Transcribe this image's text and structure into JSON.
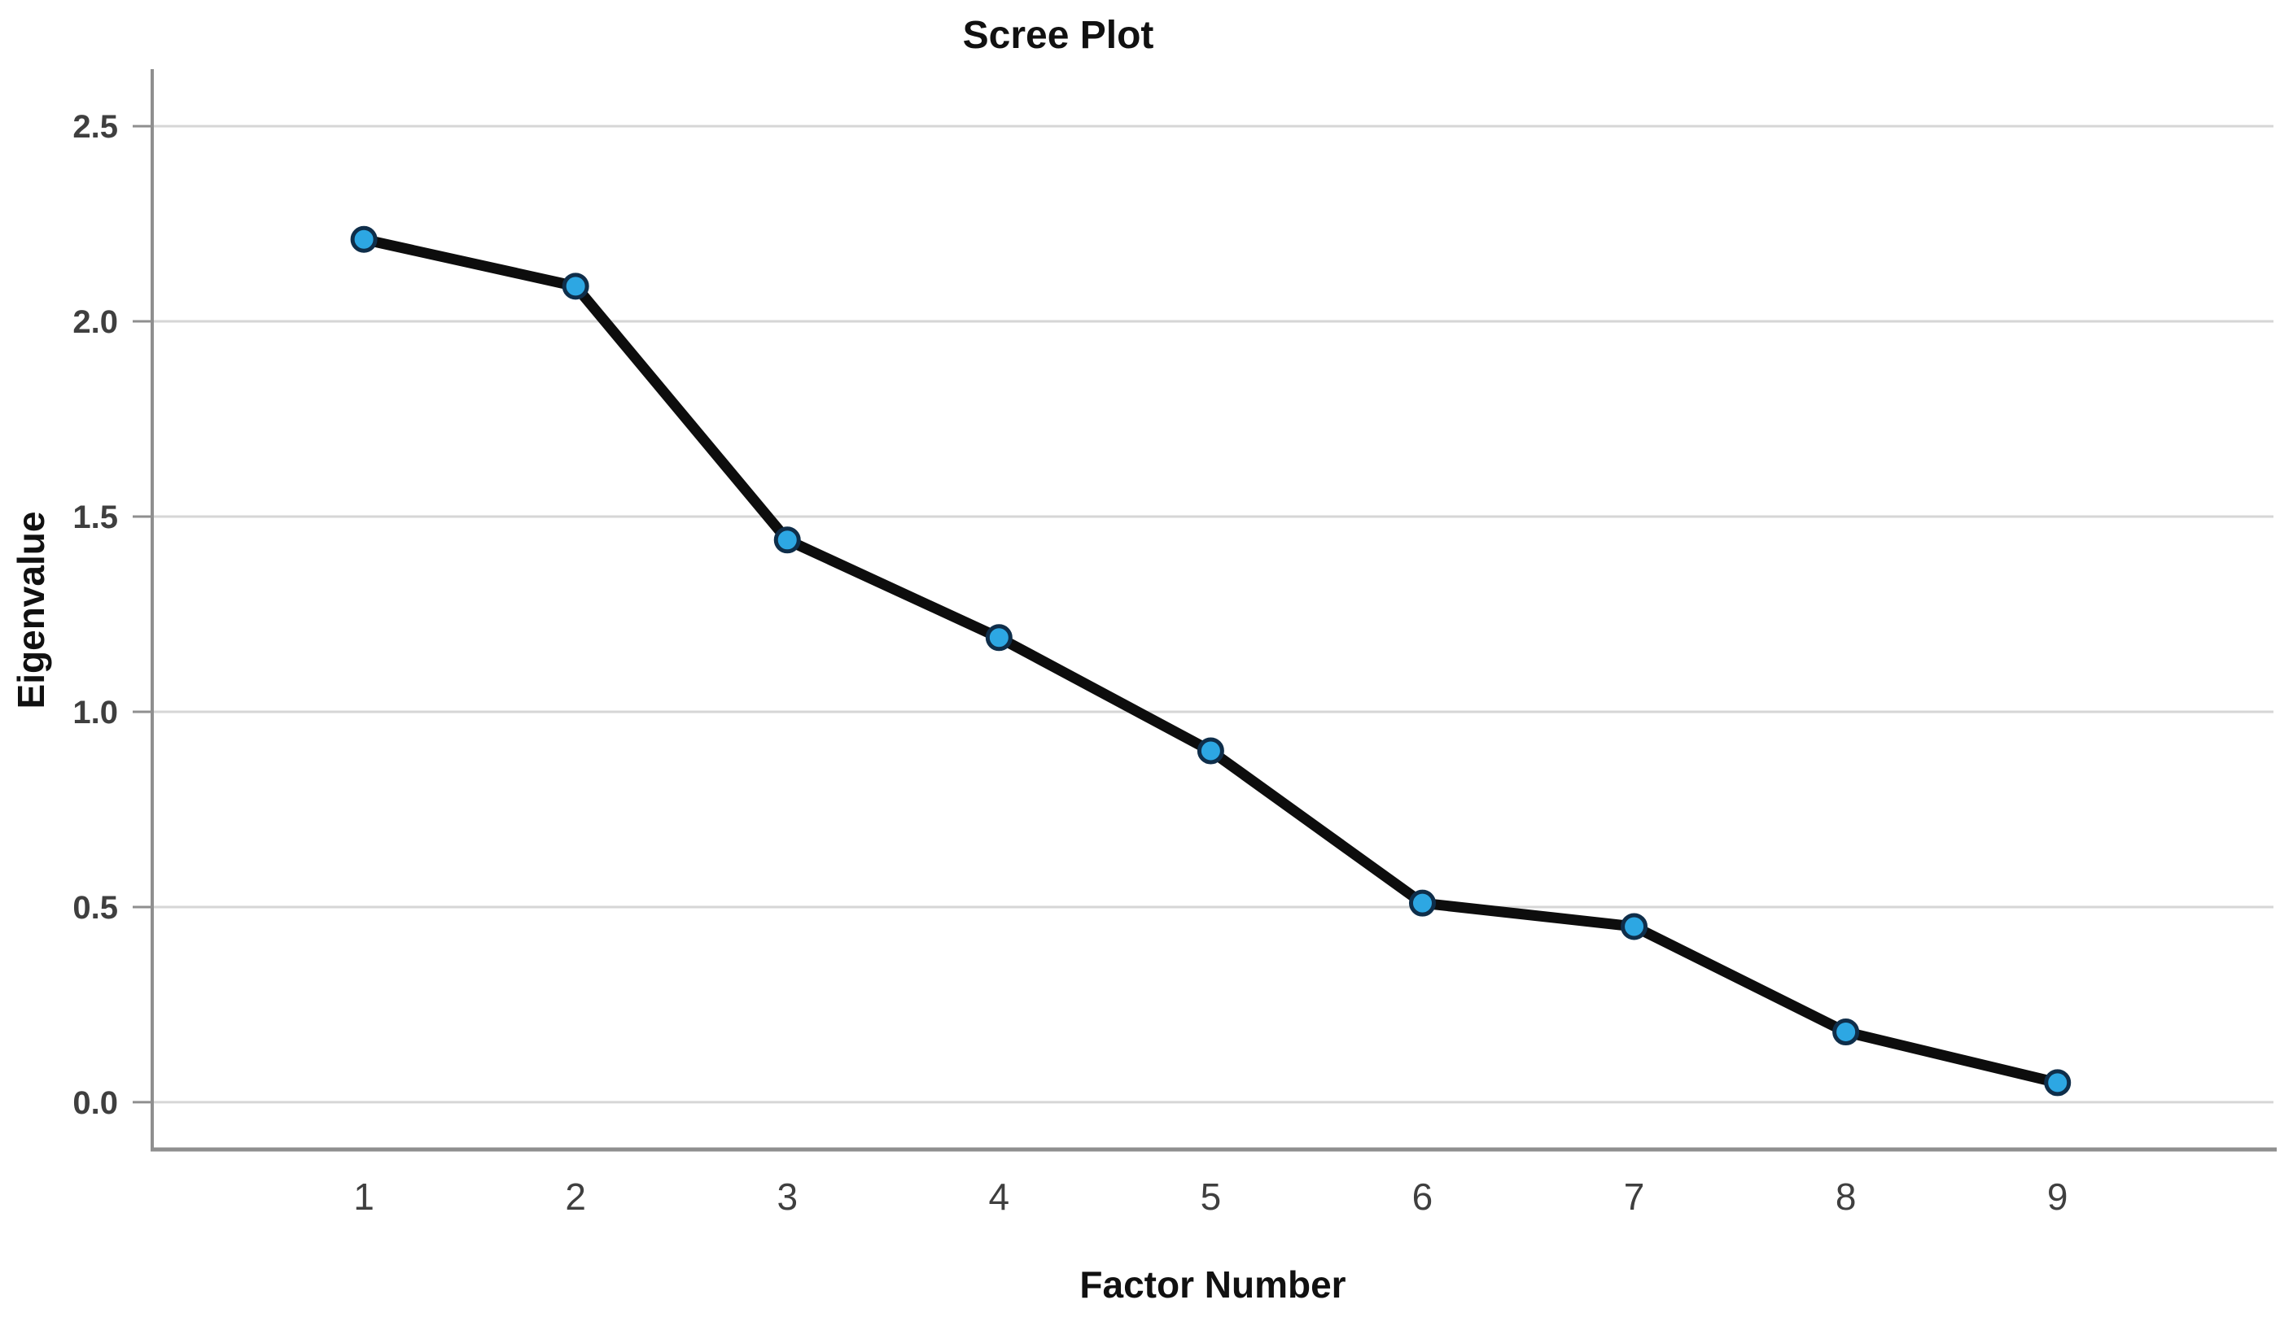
{
  "chart_data": {
    "type": "line",
    "title": "Scree Plot",
    "xlabel": "Factor Number",
    "ylabel": "Eigenvalue",
    "x": [
      1,
      2,
      3,
      4,
      5,
      6,
      7,
      8,
      9
    ],
    "x_tick_labels": [
      "1",
      "2",
      "3",
      "4",
      "5",
      "6",
      "7",
      "8",
      "9"
    ],
    "y_ticks": [
      0.0,
      0.5,
      1.0,
      1.5,
      2.0,
      2.5
    ],
    "y_tick_labels": [
      "0.0",
      "0.5",
      "1.0",
      "1.5",
      "2.0",
      "2.5"
    ],
    "series": [
      {
        "name": "Eigenvalue",
        "values": [
          2.21,
          2.09,
          1.44,
          1.19,
          0.9,
          0.51,
          0.45,
          0.18,
          0.05
        ]
      }
    ],
    "xlim": [
      0,
      10.02
    ],
    "ylim": [
      -0.121,
      2.646
    ],
    "grid": "horizontal",
    "legend": "none",
    "colors": {
      "background": "#ffffff",
      "line": "#0d0d0d",
      "marker_fill": "#2da7e3",
      "marker_stroke": "#0f2e4a",
      "gridline": "#d6d6d6",
      "axis": "#8f8f8f",
      "tick_text": "#3f3f3f",
      "title_text": "#111111"
    }
  }
}
